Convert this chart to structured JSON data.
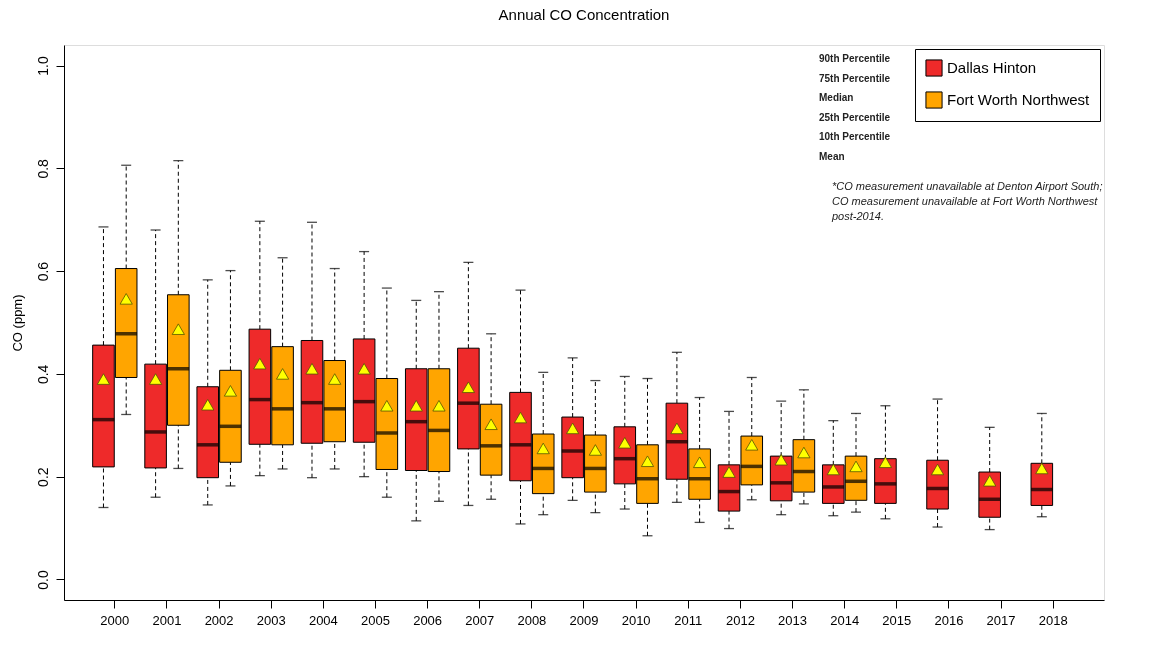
{
  "chart_data": {
    "type": "box",
    "title": "Annual CO Concentration",
    "ylabel": "CO (ppm)",
    "categories": [
      "2000",
      "2001",
      "2002",
      "2003",
      "2004",
      "2005",
      "2006",
      "2007",
      "2008",
      "2009",
      "2010",
      "2011",
      "2012",
      "2013",
      "2014",
      "2015",
      "2016",
      "2017",
      "2018"
    ],
    "series": [
      {
        "name": "Dallas Hinton",
        "color": "#ee2a2a",
        "boxes": [
          {
            "low": 0.14,
            "q1": 0.219,
            "median": 0.311,
            "q3": 0.456,
            "high": 0.686,
            "mean": 0.39
          },
          {
            "low": 0.16,
            "q1": 0.217,
            "median": 0.287,
            "q3": 0.419,
            "high": 0.68,
            "mean": 0.39
          },
          {
            "low": 0.145,
            "q1": 0.198,
            "median": 0.262,
            "q3": 0.375,
            "high": 0.583,
            "mean": 0.34
          },
          {
            "low": 0.202,
            "q1": 0.263,
            "median": 0.35,
            "q3": 0.487,
            "high": 0.697,
            "mean": 0.42
          },
          {
            "low": 0.198,
            "q1": 0.265,
            "median": 0.344,
            "q3": 0.465,
            "high": 0.695,
            "mean": 0.41
          },
          {
            "low": 0.2,
            "q1": 0.267,
            "median": 0.346,
            "q3": 0.468,
            "high": 0.638,
            "mean": 0.41
          },
          {
            "low": 0.114,
            "q1": 0.212,
            "median": 0.307,
            "q3": 0.41,
            "high": 0.543,
            "mean": 0.338
          },
          {
            "low": 0.144,
            "q1": 0.254,
            "median": 0.343,
            "q3": 0.45,
            "high": 0.617,
            "mean": 0.374
          },
          {
            "low": 0.108,
            "q1": 0.192,
            "median": 0.262,
            "q3": 0.364,
            "high": 0.563,
            "mean": 0.315
          },
          {
            "low": 0.154,
            "q1": 0.198,
            "median": 0.25,
            "q3": 0.316,
            "high": 0.431,
            "mean": 0.294
          },
          {
            "low": 0.137,
            "q1": 0.186,
            "median": 0.235,
            "q3": 0.297,
            "high": 0.395,
            "mean": 0.266
          },
          {
            "low": 0.15,
            "q1": 0.195,
            "median": 0.268,
            "q3": 0.343,
            "high": 0.442,
            "mean": 0.294
          },
          {
            "low": 0.099,
            "q1": 0.133,
            "median": 0.171,
            "q3": 0.223,
            "high": 0.327,
            "mean": 0.209
          },
          {
            "low": 0.126,
            "q1": 0.153,
            "median": 0.188,
            "q3": 0.24,
            "high": 0.347,
            "mean": 0.233
          },
          {
            "low": 0.124,
            "q1": 0.148,
            "median": 0.18,
            "q3": 0.223,
            "high": 0.309,
            "mean": 0.214
          },
          {
            "low": 0.118,
            "q1": 0.148,
            "median": 0.186,
            "q3": 0.235,
            "high": 0.338,
            "mean": 0.228
          },
          {
            "low": 0.102,
            "q1": 0.137,
            "median": 0.177,
            "q3": 0.232,
            "high": 0.351,
            "mean": 0.214
          },
          {
            "low": 0.097,
            "q1": 0.121,
            "median": 0.156,
            "q3": 0.209,
            "high": 0.296,
            "mean": 0.192
          },
          {
            "low": 0.122,
            "q1": 0.144,
            "median": 0.175,
            "q3": 0.226,
            "high": 0.323,
            "mean": 0.216
          }
        ]
      },
      {
        "name": "Fort Worth Northwest",
        "color": "#ffa500",
        "boxes": [
          {
            "low": 0.321,
            "q1": 0.393,
            "median": 0.478,
            "q3": 0.605,
            "high": 0.806,
            "mean": 0.546
          },
          {
            "low": 0.216,
            "q1": 0.3,
            "median": 0.41,
            "q3": 0.554,
            "high": 0.815,
            "mean": 0.487
          },
          {
            "low": 0.182,
            "q1": 0.228,
            "median": 0.298,
            "q3": 0.407,
            "high": 0.601,
            "mean": 0.367
          },
          {
            "low": 0.215,
            "q1": 0.262,
            "median": 0.332,
            "q3": 0.453,
            "high": 0.626,
            "mean": 0.4
          },
          {
            "low": 0.215,
            "q1": 0.268,
            "median": 0.332,
            "q3": 0.426,
            "high": 0.605,
            "mean": 0.39
          },
          {
            "low": 0.16,
            "q1": 0.214,
            "median": 0.285,
            "q3": 0.391,
            "high": 0.567,
            "mean": 0.338
          },
          {
            "low": 0.152,
            "q1": 0.21,
            "median": 0.29,
            "q3": 0.41,
            "high": 0.56,
            "mean": 0.338
          },
          {
            "low": 0.156,
            "q1": 0.203,
            "median": 0.26,
            "q3": 0.341,
            "high": 0.478,
            "mean": 0.302
          },
          {
            "low": 0.126,
            "q1": 0.167,
            "median": 0.216,
            "q3": 0.283,
            "high": 0.403,
            "mean": 0.255
          },
          {
            "low": 0.13,
            "q1": 0.17,
            "median": 0.216,
            "q3": 0.281,
            "high": 0.387,
            "mean": 0.252
          },
          {
            "low": 0.085,
            "q1": 0.148,
            "median": 0.196,
            "q3": 0.262,
            "high": 0.391,
            "mean": 0.23
          },
          {
            "low": 0.111,
            "q1": 0.156,
            "median": 0.196,
            "q3": 0.254,
            "high": 0.354,
            "mean": 0.228
          },
          {
            "low": 0.155,
            "q1": 0.184,
            "median": 0.22,
            "q3": 0.279,
            "high": 0.393,
            "mean": 0.262
          },
          {
            "low": 0.147,
            "q1": 0.17,
            "median": 0.21,
            "q3": 0.272,
            "high": 0.369,
            "mean": 0.247
          },
          {
            "low": 0.131,
            "q1": 0.154,
            "median": 0.191,
            "q3": 0.24,
            "high": 0.323,
            "mean": 0.22
          },
          null,
          null,
          null,
          null
        ]
      }
    ],
    "ylim": [
      -0.04,
      1.04
    ],
    "yticks": [
      {
        "value": 0,
        "label": "0.0"
      },
      {
        "value": 0.2,
        "label": "0.2"
      },
      {
        "value": 0.4,
        "label": "0.4"
      },
      {
        "value": 0.6,
        "label": "0.6"
      },
      {
        "value": 0.8,
        "label": "0.8"
      },
      {
        "value": 1,
        "label": "1.0"
      }
    ],
    "grid": false,
    "legend": "top right",
    "marker": "triangle",
    "annotations": [
      "90th Percentile",
      "75th Percentile",
      "Median",
      "25th Percentile",
      "10th Percentile",
      "Mean",
      "*CO measurement unavailable at Denton Airport South;",
      "CO measurement unavailable at Fort Worth Northwest",
      "post-2014."
    ]
  }
}
